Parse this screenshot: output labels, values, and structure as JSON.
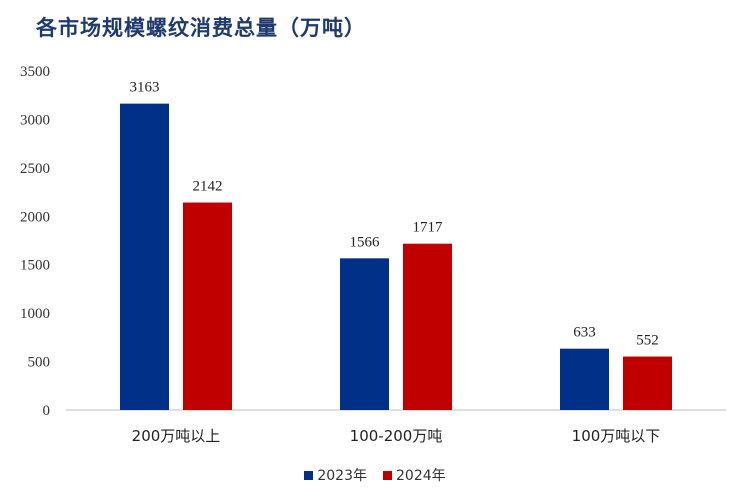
{
  "title": "各市场规模螺纹消费总量（万吨）",
  "chart_data": {
    "type": "bar",
    "title": "各市场规模螺纹消费总量（万吨）",
    "categories": [
      "200万吨以上",
      "100-200万吨",
      "100万吨以下"
    ],
    "series": [
      {
        "name": "2023年",
        "values": [
          3163,
          1566,
          633
        ],
        "color": "#003087"
      },
      {
        "name": "2024年",
        "values": [
          2142,
          1717,
          552
        ],
        "color": "#c00000"
      }
    ],
    "ylim": [
      0,
      3500
    ],
    "yticks": [
      0,
      500,
      1000,
      1500,
      2000,
      2500,
      3000,
      3500
    ],
    "grid": false,
    "legend": "bottom"
  }
}
